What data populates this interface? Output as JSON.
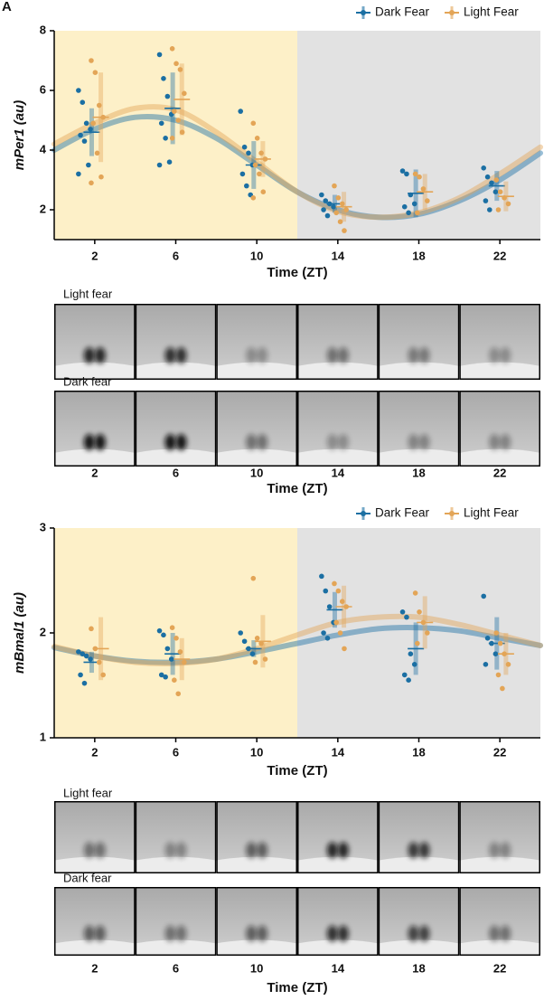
{
  "panel_label": "A",
  "chart_data": [
    {
      "type": "scatter",
      "ylabel": "mPer1 (au)",
      "xlabel": "Time (ZT)",
      "xlim": [
        0,
        24
      ],
      "xticks": [
        2,
        6,
        10,
        14,
        18,
        22
      ],
      "ylim": [
        1,
        8
      ],
      "yticks": [
        2,
        4,
        6,
        8
      ],
      "shading": [
        {
          "range": [
            0,
            12
          ],
          "color": "#fdf0c8"
        },
        {
          "range": [
            12,
            24
          ],
          "color": "#e2e2e2"
        }
      ],
      "x": [
        2,
        6,
        10,
        14,
        18,
        22
      ],
      "fit_x": [
        0,
        2,
        4,
        6,
        8,
        10,
        12,
        14,
        16,
        18,
        20,
        22,
        24
      ],
      "series": [
        {
          "name": "Dark Fear",
          "color": "#1b6fa3",
          "means": [
            4.6,
            5.4,
            3.5,
            2.2,
            2.55,
            2.8
          ],
          "errors": [
            0.8,
            1.2,
            0.8,
            0.3,
            0.8,
            0.5
          ],
          "points": [
            [
              6.0,
              5.6,
              4.9,
              4.7,
              4.5,
              4.3,
              3.5,
              3.2
            ],
            [
              7.2,
              6.4,
              5.8,
              5.2,
              4.9,
              4.4,
              3.6,
              3.5
            ],
            [
              5.3,
              4.1,
              3.9,
              3.5,
              3.2,
              2.8,
              2.5
            ],
            [
              2.5,
              2.3,
              2.2,
              2.1,
              2.0,
              1.8
            ],
            [
              3.3,
              3.2,
              2.5,
              2.2,
              2.1,
              1.9
            ],
            [
              3.4,
              3.1,
              2.9,
              2.6,
              2.3,
              2.0
            ]
          ],
          "fit": [
            4.0,
            4.7,
            5.1,
            5.0,
            4.4,
            3.5,
            2.6,
            2.0,
            1.75,
            1.85,
            2.3,
            3.0,
            3.9
          ]
        },
        {
          "name": "Light Fear",
          "color": "#e3a557",
          "means": [
            5.1,
            5.7,
            3.7,
            2.1,
            2.6,
            2.45
          ],
          "errors": [
            1.5,
            1.2,
            0.6,
            0.5,
            0.6,
            0.5
          ],
          "points": [
            [
              7.0,
              6.6,
              5.5,
              5.1,
              4.9,
              3.9,
              3.1,
              2.9
            ],
            [
              7.4,
              6.9,
              6.7,
              5.9,
              5.3,
              5.0,
              4.6,
              4.4
            ],
            [
              4.9,
              4.4,
              3.9,
              3.7,
              3.5,
              3.2,
              2.6,
              2.4
            ],
            [
              2.8,
              2.4,
              2.2,
              2.0,
              1.9,
              1.6,
              1.3
            ],
            [
              3.2,
              3.1,
              2.7,
              2.3,
              1.9
            ],
            [
              3.0,
              2.6,
              2.4,
              2.2,
              2.0
            ]
          ],
          "fit": [
            4.2,
            4.9,
            5.4,
            5.35,
            4.6,
            3.6,
            2.6,
            1.95,
            1.75,
            1.9,
            2.4,
            3.2,
            4.1
          ]
        }
      ]
    },
    {
      "type": "scatter",
      "ylabel": "mBmal1 (au)",
      "xlabel": "Time (ZT)",
      "xlim": [
        0,
        24
      ],
      "xticks": [
        2,
        6,
        10,
        14,
        18,
        22
      ],
      "ylim": [
        1,
        3
      ],
      "yticks": [
        1,
        2,
        3
      ],
      "shading": [
        {
          "range": [
            0,
            12
          ],
          "color": "#fdf0c8"
        },
        {
          "range": [
            12,
            24
          ],
          "color": "#e2e2e2"
        }
      ],
      "x": [
        2,
        6,
        10,
        14,
        18,
        22
      ],
      "fit_x": [
        0,
        2,
        4,
        6,
        8,
        10,
        12,
        14,
        16,
        18,
        20,
        22,
        24
      ],
      "series": [
        {
          "name": "Dark Fear",
          "color": "#1b6fa3",
          "means": [
            1.72,
            1.8,
            1.85,
            2.22,
            1.85,
            1.9
          ],
          "errors": [
            0.1,
            0.2,
            0.08,
            0.17,
            0.25,
            0.25
          ],
          "points": [
            [
              1.82,
              1.8,
              1.78,
              1.75,
              1.6,
              1.52
            ],
            [
              2.02,
              1.98,
              1.85,
              1.75,
              1.6,
              1.58
            ],
            [
              2.0,
              1.92,
              1.85,
              1.8
            ],
            [
              2.54,
              2.4,
              2.25,
              2.1,
              2.0,
              1.95
            ],
            [
              2.2,
              2.15,
              1.8,
              1.7,
              1.6,
              1.55
            ],
            [
              2.35,
              1.95,
              1.9,
              1.8,
              1.7
            ]
          ],
          "fit": [
            1.86,
            1.78,
            1.73,
            1.72,
            1.75,
            1.82,
            1.9,
            1.98,
            2.04,
            2.05,
            2.02,
            1.95,
            1.88
          ]
        },
        {
          "name": "Light Fear",
          "color": "#e3a557",
          "means": [
            1.85,
            1.75,
            1.92,
            2.25,
            2.1,
            1.8
          ],
          "errors": [
            0.3,
            0.2,
            0.25,
            0.2,
            0.25,
            0.2
          ],
          "points": [
            [
              2.04,
              1.85,
              1.72,
              1.6
            ],
            [
              2.05,
              1.95,
              1.82,
              1.72,
              1.55,
              1.42
            ],
            [
              2.52,
              1.95,
              1.9,
              1.75,
              1.72
            ],
            [
              2.47,
              2.4,
              2.3,
              2.25,
              2.1,
              2.0,
              1.85
            ],
            [
              2.38,
              2.2,
              2.1,
              2.0,
              1.9
            ],
            [
              2.0,
              1.9,
              1.8,
              1.7,
              1.6,
              1.47
            ]
          ],
          "fit": [
            1.87,
            1.78,
            1.72,
            1.71,
            1.75,
            1.85,
            1.98,
            2.1,
            2.15,
            2.15,
            2.08,
            1.98,
            1.88
          ]
        }
      ]
    }
  ],
  "image_panels": [
    {
      "rows": [
        "Light fear",
        "Dark fear"
      ],
      "categories": [
        "2",
        "6",
        "10",
        "14",
        "18",
        "22"
      ],
      "xlabel": "Time (ZT)"
    },
    {
      "rows": [
        "Light fear",
        "Dark fear"
      ],
      "categories": [
        "2",
        "6",
        "10",
        "14",
        "18",
        "22"
      ],
      "xlabel": "Time (ZT)"
    }
  ]
}
